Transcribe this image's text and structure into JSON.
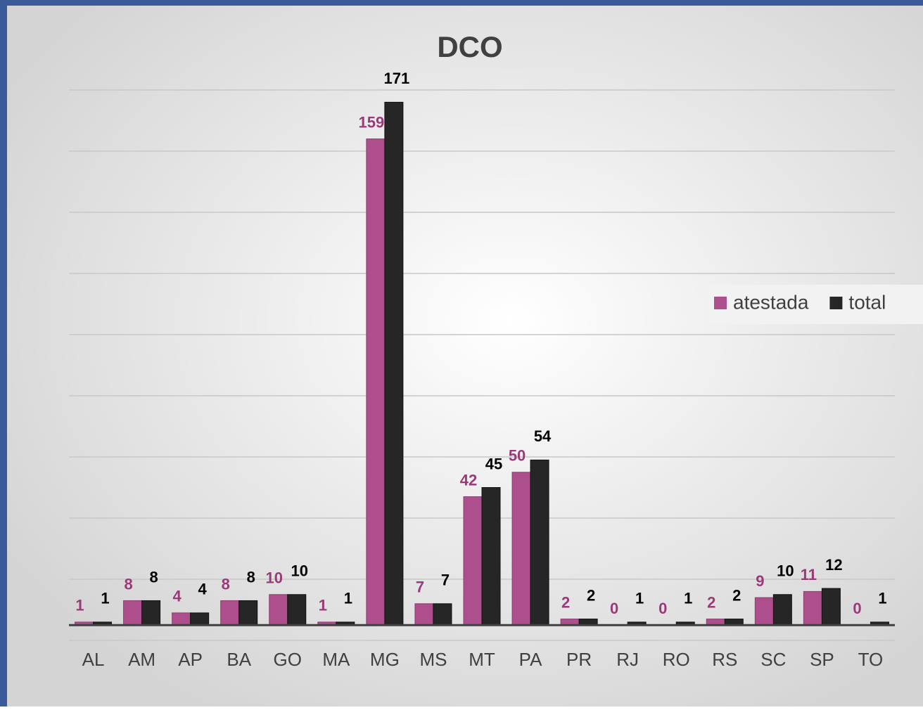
{
  "chart_data": {
    "type": "bar",
    "title": "DCO",
    "categories": [
      "AL",
      "AM",
      "AP",
      "BA",
      "GO",
      "MA",
      "MG",
      "MS",
      "MT",
      "PA",
      "PR",
      "RJ",
      "RO",
      "RS",
      "SC",
      "SP",
      "TO"
    ],
    "series": [
      {
        "name": "atestada",
        "color": "#ad4f8c",
        "values": [
          1,
          8,
          4,
          8,
          10,
          1,
          159,
          7,
          42,
          50,
          2,
          0,
          0,
          2,
          9,
          11,
          0
        ]
      },
      {
        "name": "total",
        "color": "#262626",
        "values": [
          1,
          8,
          4,
          8,
          10,
          1,
          171,
          7,
          45,
          54,
          2,
          1,
          1,
          2,
          10,
          12,
          1
        ]
      }
    ],
    "ylim": [
      -5,
      175
    ],
    "yticks": [
      -5,
      15,
      35,
      55,
      75,
      95,
      115,
      135,
      155,
      175
    ],
    "grid": true,
    "legend": "right"
  }
}
